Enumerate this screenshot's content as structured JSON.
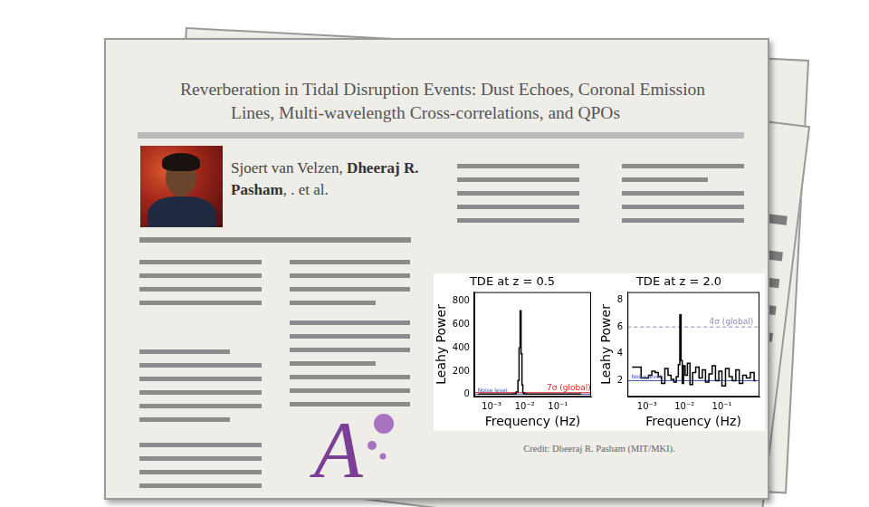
{
  "document": {
    "title_lines": [
      "Reverberation in Tidal Disruption Events: Dust Echoes, Coronal Emission",
      "Lines, Multi-wavelength Cross-correlations, and QPOs"
    ],
    "authors": [
      {
        "text": "Sjoert van Velzen, ",
        "bold": false
      },
      {
        "text": "Dheeraj R. Pasham",
        "bold": true
      },
      {
        "text": ", . et al.",
        "bold": false
      }
    ],
    "logo": "A",
    "credit": "Credit: Dheeraj R. Pasham (MIT/MKI)."
  },
  "chart_data": [
    {
      "type": "line",
      "title": "TDE at z = 0.5",
      "x_label": "Frequency (Hz)",
      "y_label": "Leahy Power",
      "log": "x",
      "grid": false,
      "xlim": [
        0.0003,
        1
      ],
      "xticks": [
        {
          "value": 0.001,
          "label": "10⁻³"
        },
        {
          "value": 0.01,
          "label": "10⁻²"
        },
        {
          "value": 0.1,
          "label": "10⁻¹"
        }
      ],
      "ylim": [
        -20,
        880
      ],
      "yticks": [
        0,
        200,
        400,
        600,
        800
      ],
      "series": [
        {
          "name": "TDE at z = 0.5",
          "color": "#000000",
          "line_style": "steps",
          "x": [
            0.0004,
            0.0006,
            0.0009,
            0.0013,
            0.002,
            0.003,
            0.004,
            0.005,
            0.006,
            0.0065,
            0.007,
            0.0075,
            0.008,
            0.0085,
            0.009,
            0.01,
            0.012,
            0.015,
            0.02,
            0.03,
            0.05,
            0.08,
            0.12,
            0.2,
            0.3,
            0.5
          ],
          "values": [
            3,
            2,
            2,
            3,
            2,
            2,
            3,
            5,
            20,
            120,
            400,
            720,
            350,
            80,
            15,
            4,
            3,
            2,
            2,
            2,
            2,
            2,
            2,
            2,
            2,
            2
          ]
        }
      ],
      "reference_lines": [
        {
          "value": 15,
          "label": "7σ (global)",
          "color": "#d62728",
          "line_style": "solid"
        },
        {
          "value": 2,
          "label": "Noise level",
          "color": "#3b4cc0",
          "line_style": "solid"
        }
      ]
    },
    {
      "type": "line",
      "title": "TDE at z = 2.0",
      "x_label": "Frequency (Hz)",
      "y_label": "Leahy Power",
      "log": "x",
      "grid": false,
      "xlim": [
        0.0003,
        1
      ],
      "xticks": [
        {
          "value": 0.001,
          "label": "10⁻³"
        },
        {
          "value": 0.01,
          "label": "10⁻²"
        },
        {
          "value": 0.1,
          "label": "10⁻¹"
        }
      ],
      "ylim": [
        0.8,
        8.6
      ],
      "yticks": [
        2,
        4,
        6,
        8
      ],
      "series": [
        {
          "name": "TDE at z = 2.0",
          "color": "#000000",
          "line_style": "steps",
          "x": [
            0.0004,
            0.0006,
            0.0008,
            0.001,
            0.0012,
            0.0015,
            0.0018,
            0.0022,
            0.0027,
            0.0033,
            0.004,
            0.0048,
            0.0056,
            0.0065,
            0.0072,
            0.0078,
            0.0084,
            0.009,
            0.0098,
            0.011,
            0.013,
            0.015,
            0.018,
            0.022,
            0.027,
            0.033,
            0.04,
            0.05,
            0.06,
            0.075,
            0.09,
            0.11,
            0.14,
            0.17,
            0.21,
            0.26,
            0.32,
            0.4,
            0.5,
            0.65,
            0.8
          ],
          "values": [
            3,
            3,
            2.2,
            2.2,
            2.4,
            2.7,
            2.6,
            2.3,
            1.8,
            2.9,
            2.4,
            2.1,
            1.9,
            2.3,
            3.2,
            6.9,
            3.5,
            1.8,
            3.1,
            2.4,
            3.3,
            1.7,
            2.6,
            3.0,
            2.2,
            2.8,
            1.9,
            2.5,
            3.1,
            2.0,
            2.7,
            1.6,
            2.9,
            2.3,
            2.0,
            2.8,
            1.8,
            2.4,
            2.2,
            2.6,
            2.0
          ]
        }
      ],
      "reference_lines": [
        {
          "value": 6,
          "label": "4σ (global)",
          "color": "#8a8ab8",
          "line_style": "dashed"
        },
        {
          "value": 2,
          "label": "Noise level",
          "color": "#3b4cc0",
          "line_style": "solid"
        }
      ]
    }
  ]
}
